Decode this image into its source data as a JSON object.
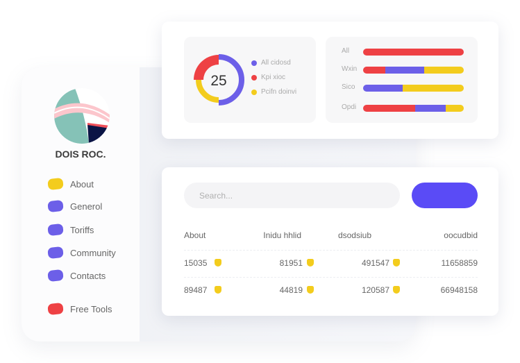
{
  "sidebar": {
    "brand": "DOIS ROC.",
    "items": [
      {
        "label": "About",
        "color": "#f3cc1d"
      },
      {
        "label": "Generol",
        "color": "#6c5fe8"
      },
      {
        "label": "Toriffs",
        "color": "#6c5fe8"
      },
      {
        "label": "Community",
        "color": "#6c5fe8"
      },
      {
        "label": "Contacts",
        "color": "#6c5fe8"
      },
      {
        "label": "Free Tools",
        "color": "#ee4144"
      }
    ]
  },
  "donut": {
    "value": "25",
    "legend": [
      {
        "label": "All cidosd",
        "color": "#6c5fe8"
      },
      {
        "label": "Kpi xioc",
        "color": "#ee4144"
      },
      {
        "label": "Pcifn doinvi",
        "color": "#f3cc1d"
      }
    ]
  },
  "bars": [
    {
      "label": "All",
      "segments": [
        {
          "color": "#ee4144",
          "fraction": 1
        }
      ]
    },
    {
      "label": "Wxin",
      "segments": [
        {
          "color": "#ee4144",
          "fraction": 0.22
        },
        {
          "color": "#6c5fe8",
          "fraction": 0.39
        },
        {
          "color": "#f3cc1d",
          "fraction": 0.39
        }
      ]
    },
    {
      "label": "Sico",
      "segments": [
        {
          "color": "#6c5fe8",
          "fraction": 0.39
        },
        {
          "color": "#f3cc1d",
          "fraction": 0.61
        }
      ]
    },
    {
      "label": "Opdi",
      "segments": [
        {
          "color": "#ee4144",
          "fraction": 0.52
        },
        {
          "color": "#6c5fe8",
          "fraction": 0.3
        },
        {
          "color": "#f3cc1d",
          "fraction": 0.18
        }
      ]
    }
  ],
  "search": {
    "placeholder": "Search..."
  },
  "table": {
    "headers": [
      "About",
      "Inidu hhlid",
      "dsodsiub",
      "oocudbid"
    ],
    "rows": [
      [
        "15035",
        "81951",
        "491547",
        "11658859"
      ],
      [
        "89487",
        "44819",
        "120587",
        "66948158"
      ]
    ]
  }
}
